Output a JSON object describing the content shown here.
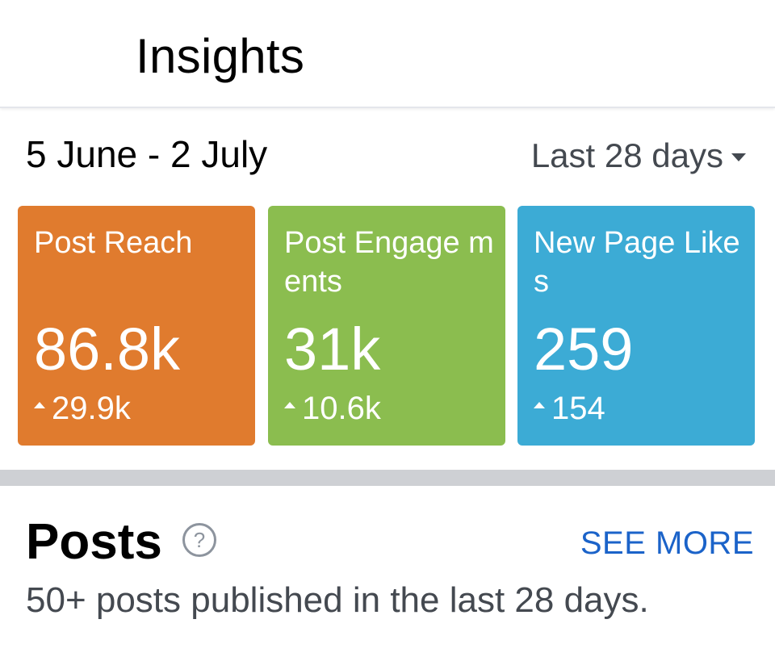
{
  "header": {
    "title": "Insights"
  },
  "overview": {
    "date_range": "5 June - 2 July",
    "period": "Last 28 days",
    "cards": [
      {
        "label": "Post Reach",
        "value": "86.8k",
        "delta": "29.9k",
        "color": "#e07b2e"
      },
      {
        "label": "Post Engage ments",
        "value": "31k",
        "delta": "10.6k",
        "color": "#8bbd4f"
      },
      {
        "label": "New Page Likes",
        "value": "259",
        "delta": "154",
        "color": "#3cabd5"
      }
    ]
  },
  "posts": {
    "title": "Posts",
    "help_symbol": "?",
    "see_more": "SEE MORE",
    "subtitle": "50+ posts published in the last 28 days."
  },
  "colors": {
    "link": "#1b63c9",
    "divider": "#ced0d4"
  },
  "icons": {
    "period_caret": "caret-down-icon",
    "delta_arrow": "up-arrow-icon",
    "help": "help-icon"
  }
}
